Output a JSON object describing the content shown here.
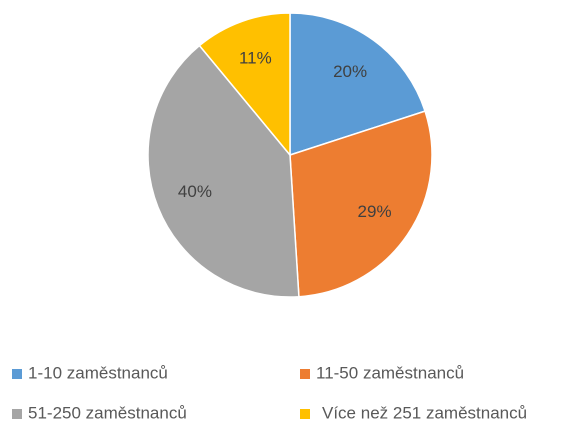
{
  "chart_data": {
    "type": "pie",
    "categories": [
      "1-10 zaměstnanců",
      "11-50 zaměstnanců",
      "51-250 zaměstnanců",
      "Více než 251 zaměstnanců"
    ],
    "values": [
      20,
      29,
      40,
      11
    ],
    "value_labels": [
      "20%",
      "29%",
      "40%",
      "11%"
    ],
    "colors": [
      "#5b9bd5",
      "#ed7d31",
      "#a5a5a5",
      "#ffc000"
    ],
    "legend": "bottom"
  }
}
